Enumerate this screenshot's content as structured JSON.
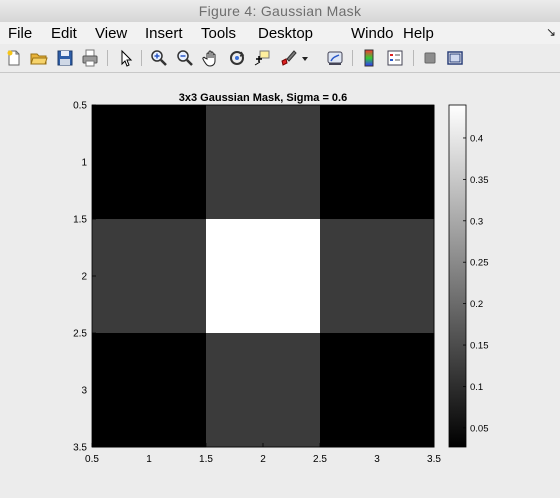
{
  "window": {
    "title": "Figure 4: Gaussian Mask"
  },
  "menu": [
    "File",
    "Edit",
    "View",
    "Insert",
    "Tools",
    "Desktop",
    "Windo",
    "Help"
  ],
  "menu_extra": "↘",
  "toolbar": {
    "icons": [
      "new-file-icon",
      "open-folder-icon",
      "save-icon",
      "print-icon",
      "pointer-icon",
      "zoom-in-icon",
      "zoom-out-icon",
      "pan-hand-icon",
      "rotate-3d-icon",
      "data-cursor-icon",
      "brush-icon",
      "brush-dropdown-icon",
      "link-plot-icon",
      "colorbar-icon",
      "legend-icon",
      "hide-plot-tools-icon",
      "show-plot-tools-icon"
    ]
  },
  "chart_data": {
    "type": "heatmap",
    "title": "3x3 Gaussian Mask, Sigma = 0.6",
    "xlabel": "",
    "ylabel": "",
    "values": [
      [
        0.0269,
        0.1231,
        0.0269
      ],
      [
        0.1231,
        0.4398,
        0.1231
      ],
      [
        0.0269,
        0.1231,
        0.0269
      ]
    ],
    "xlim": [
      0.5,
      3.5
    ],
    "ylim": [
      0.5,
      3.5
    ],
    "x_ticks": [
      "0.5",
      "1",
      "1.5",
      "2",
      "2.5",
      "3",
      "3.5"
    ],
    "y_ticks": [
      "0.5",
      "1",
      "1.5",
      "2",
      "2.5",
      "3",
      "3.5"
    ],
    "colormap": "gray",
    "clim": [
      0.0269,
      0.4398
    ],
    "colorbar_ticks": [
      "0.05",
      "0.1",
      "0.15",
      "0.2",
      "0.25",
      "0.3",
      "0.35",
      "0.4"
    ]
  }
}
